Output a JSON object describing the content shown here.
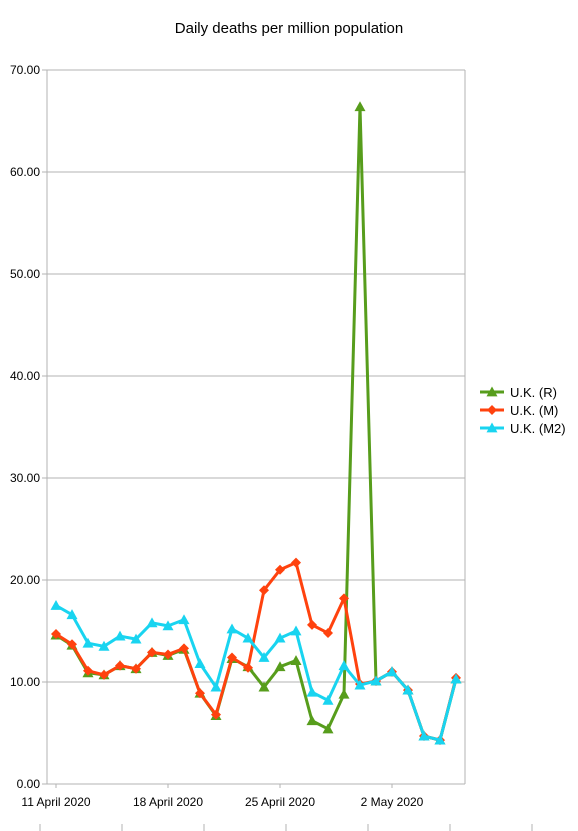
{
  "chart_data": {
    "type": "line",
    "title": "Daily deaths per million population",
    "xlabel": "",
    "ylabel": "",
    "ylim": [
      0,
      70
    ],
    "yticks": [
      "0.00",
      "10.00",
      "20.00",
      "30.00",
      "40.00",
      "50.00",
      "60.00",
      "70.00"
    ],
    "x": [
      "2020-04-11",
      "2020-04-12",
      "2020-04-13",
      "2020-04-14",
      "2020-04-15",
      "2020-04-16",
      "2020-04-17",
      "2020-04-18",
      "2020-04-19",
      "2020-04-20",
      "2020-04-21",
      "2020-04-22",
      "2020-04-23",
      "2020-04-24",
      "2020-04-25",
      "2020-04-26",
      "2020-04-27",
      "2020-04-28",
      "2020-04-29",
      "2020-04-30",
      "2020-05-01",
      "2020-05-02",
      "2020-05-03",
      "2020-05-04",
      "2020-05-05",
      "2020-05-06"
    ],
    "xtick_labels": [
      {
        "date": "2020-04-11",
        "label": "11 April 2020"
      },
      {
        "date": "2020-04-18",
        "label": "18 April 2020"
      },
      {
        "date": "2020-04-25",
        "label": "25 April 2020"
      },
      {
        "date": "2020-05-02",
        "label": "2 May 2020"
      }
    ],
    "grid": true,
    "legend_position": "right",
    "series": [
      {
        "name": "U.K. (R)",
        "color": "#579d1c",
        "marker": "triangle",
        "values": [
          14.6,
          13.6,
          10.9,
          10.7,
          11.6,
          11.3,
          12.9,
          12.6,
          13.2,
          8.9,
          6.7,
          12.3,
          11.5,
          9.5,
          11.5,
          12.1,
          6.2,
          5.4,
          8.8,
          66.4,
          10.1,
          11.0,
          9.2,
          4.7,
          4.3,
          10.3
        ]
      },
      {
        "name": "U.K. (M)",
        "color": "#ff420e",
        "marker": "diamond",
        "values": [
          14.7,
          13.7,
          11.1,
          10.7,
          11.6,
          11.3,
          12.9,
          12.7,
          13.3,
          8.9,
          6.8,
          12.4,
          11.4,
          19.0,
          21.0,
          21.7,
          15.6,
          14.8,
          18.2,
          9.8,
          10.1,
          11.0,
          9.2,
          4.7,
          4.3,
          10.4
        ]
      },
      {
        "name": "U.K. (M2)",
        "color": "#19d4f0",
        "marker": "triangle",
        "values": [
          17.5,
          16.6,
          13.8,
          13.5,
          14.5,
          14.2,
          15.8,
          15.5,
          16.1,
          11.8,
          9.5,
          15.2,
          14.3,
          12.4,
          14.3,
          15.0,
          9.0,
          8.2,
          11.6,
          9.7,
          10.1,
          11.0,
          9.2,
          4.7,
          4.3,
          10.3
        ]
      }
    ]
  }
}
